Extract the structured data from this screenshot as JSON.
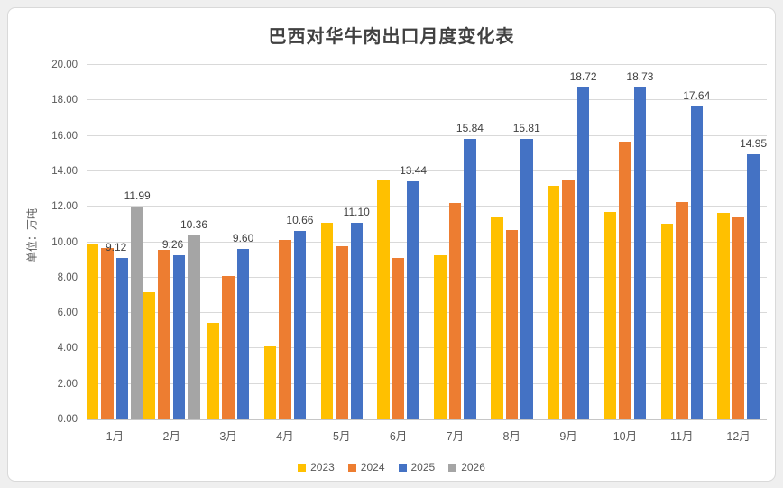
{
  "page": {
    "background": "#efefef",
    "card_background": "#ffffff",
    "card_border": "#d9d9d9"
  },
  "chart_data": {
    "type": "bar",
    "title": "巴西对华牛肉出口月度变化表",
    "ylabel": "单位：万吨",
    "xlabel": "",
    "ylim": [
      0,
      20
    ],
    "ytick_step": 2,
    "ytick_format_decimals": 2,
    "grid": true,
    "legend_position": "bottom",
    "categories": [
      "1月",
      "2月",
      "3月",
      "4月",
      "5月",
      "6月",
      "7月",
      "8月",
      "9月",
      "10月",
      "11月",
      "12月"
    ],
    "series": [
      {
        "name": "2023",
        "color": "#FFC000",
        "show_labels": false,
        "values": [
          9.88,
          7.17,
          5.45,
          4.1,
          11.08,
          13.5,
          9.25,
          11.42,
          13.2,
          11.72,
          11.05,
          11.63
        ]
      },
      {
        "name": "2024",
        "color": "#ED7D31",
        "show_labels": false,
        "values": [
          9.65,
          9.58,
          8.1,
          10.12,
          9.78,
          9.13,
          12.2,
          10.68,
          13.52,
          15.7,
          12.26,
          11.38
        ]
      },
      {
        "name": "2025",
        "color": "#4472C4",
        "show_labels": true,
        "values": [
          9.12,
          9.26,
          9.6,
          10.66,
          11.1,
          13.44,
          15.84,
          15.81,
          18.72,
          18.73,
          17.64,
          14.95
        ]
      },
      {
        "name": "2026",
        "color": "#A5A5A5",
        "show_labels": true,
        "values": [
          11.99,
          10.36,
          null,
          null,
          null,
          null,
          null,
          null,
          null,
          null,
          null,
          null
        ]
      }
    ],
    "colors": {
      "grid": "#d9d9d9",
      "axis_line": "#c6c6c6",
      "axis_text": "#595959",
      "title_text": "#404040",
      "label_text": "#404040"
    }
  }
}
